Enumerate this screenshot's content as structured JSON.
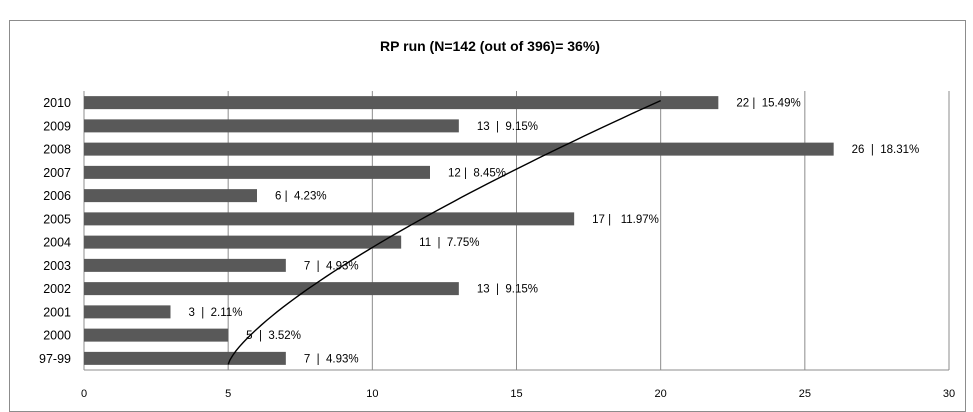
{
  "chart_data": {
    "type": "bar",
    "orientation": "horizontal",
    "title": "RP run (N=142 (out of 396)= 36%)",
    "categories": [
      "2010",
      "2009",
      "2008",
      "2007",
      "2006",
      "2005",
      "2004",
      "2003",
      "2002",
      "2001",
      "2000",
      "97-99"
    ],
    "values": [
      22,
      13,
      26,
      12,
      6,
      17,
      11,
      7,
      13,
      3,
      5,
      7
    ],
    "data_labels": [
      "22 |  15.49%",
      "13  |  9.15%",
      "26  |  18.31%",
      "12 |  8.45%",
      "6 |  4.23%",
      "17 |   11.97%",
      "11  |  7.75%",
      "7  |  4.93%",
      "13  |  9.15%",
      "3  |  2.11%",
      "5  |  3.52%",
      "7  |  4.93%"
    ],
    "xlim": [
      0,
      30
    ],
    "xticks": [
      0,
      5,
      10,
      15,
      20,
      25,
      30
    ],
    "grid": true,
    "legend": "none",
    "bar_color": "#595959",
    "gridline_color": "#8c8c8c",
    "trend_curve": {
      "type": "cumulative",
      "description_hidden": true,
      "start": {
        "category": "97-99",
        "value": 5
      },
      "end": {
        "category": "2010",
        "value": 20
      }
    }
  }
}
